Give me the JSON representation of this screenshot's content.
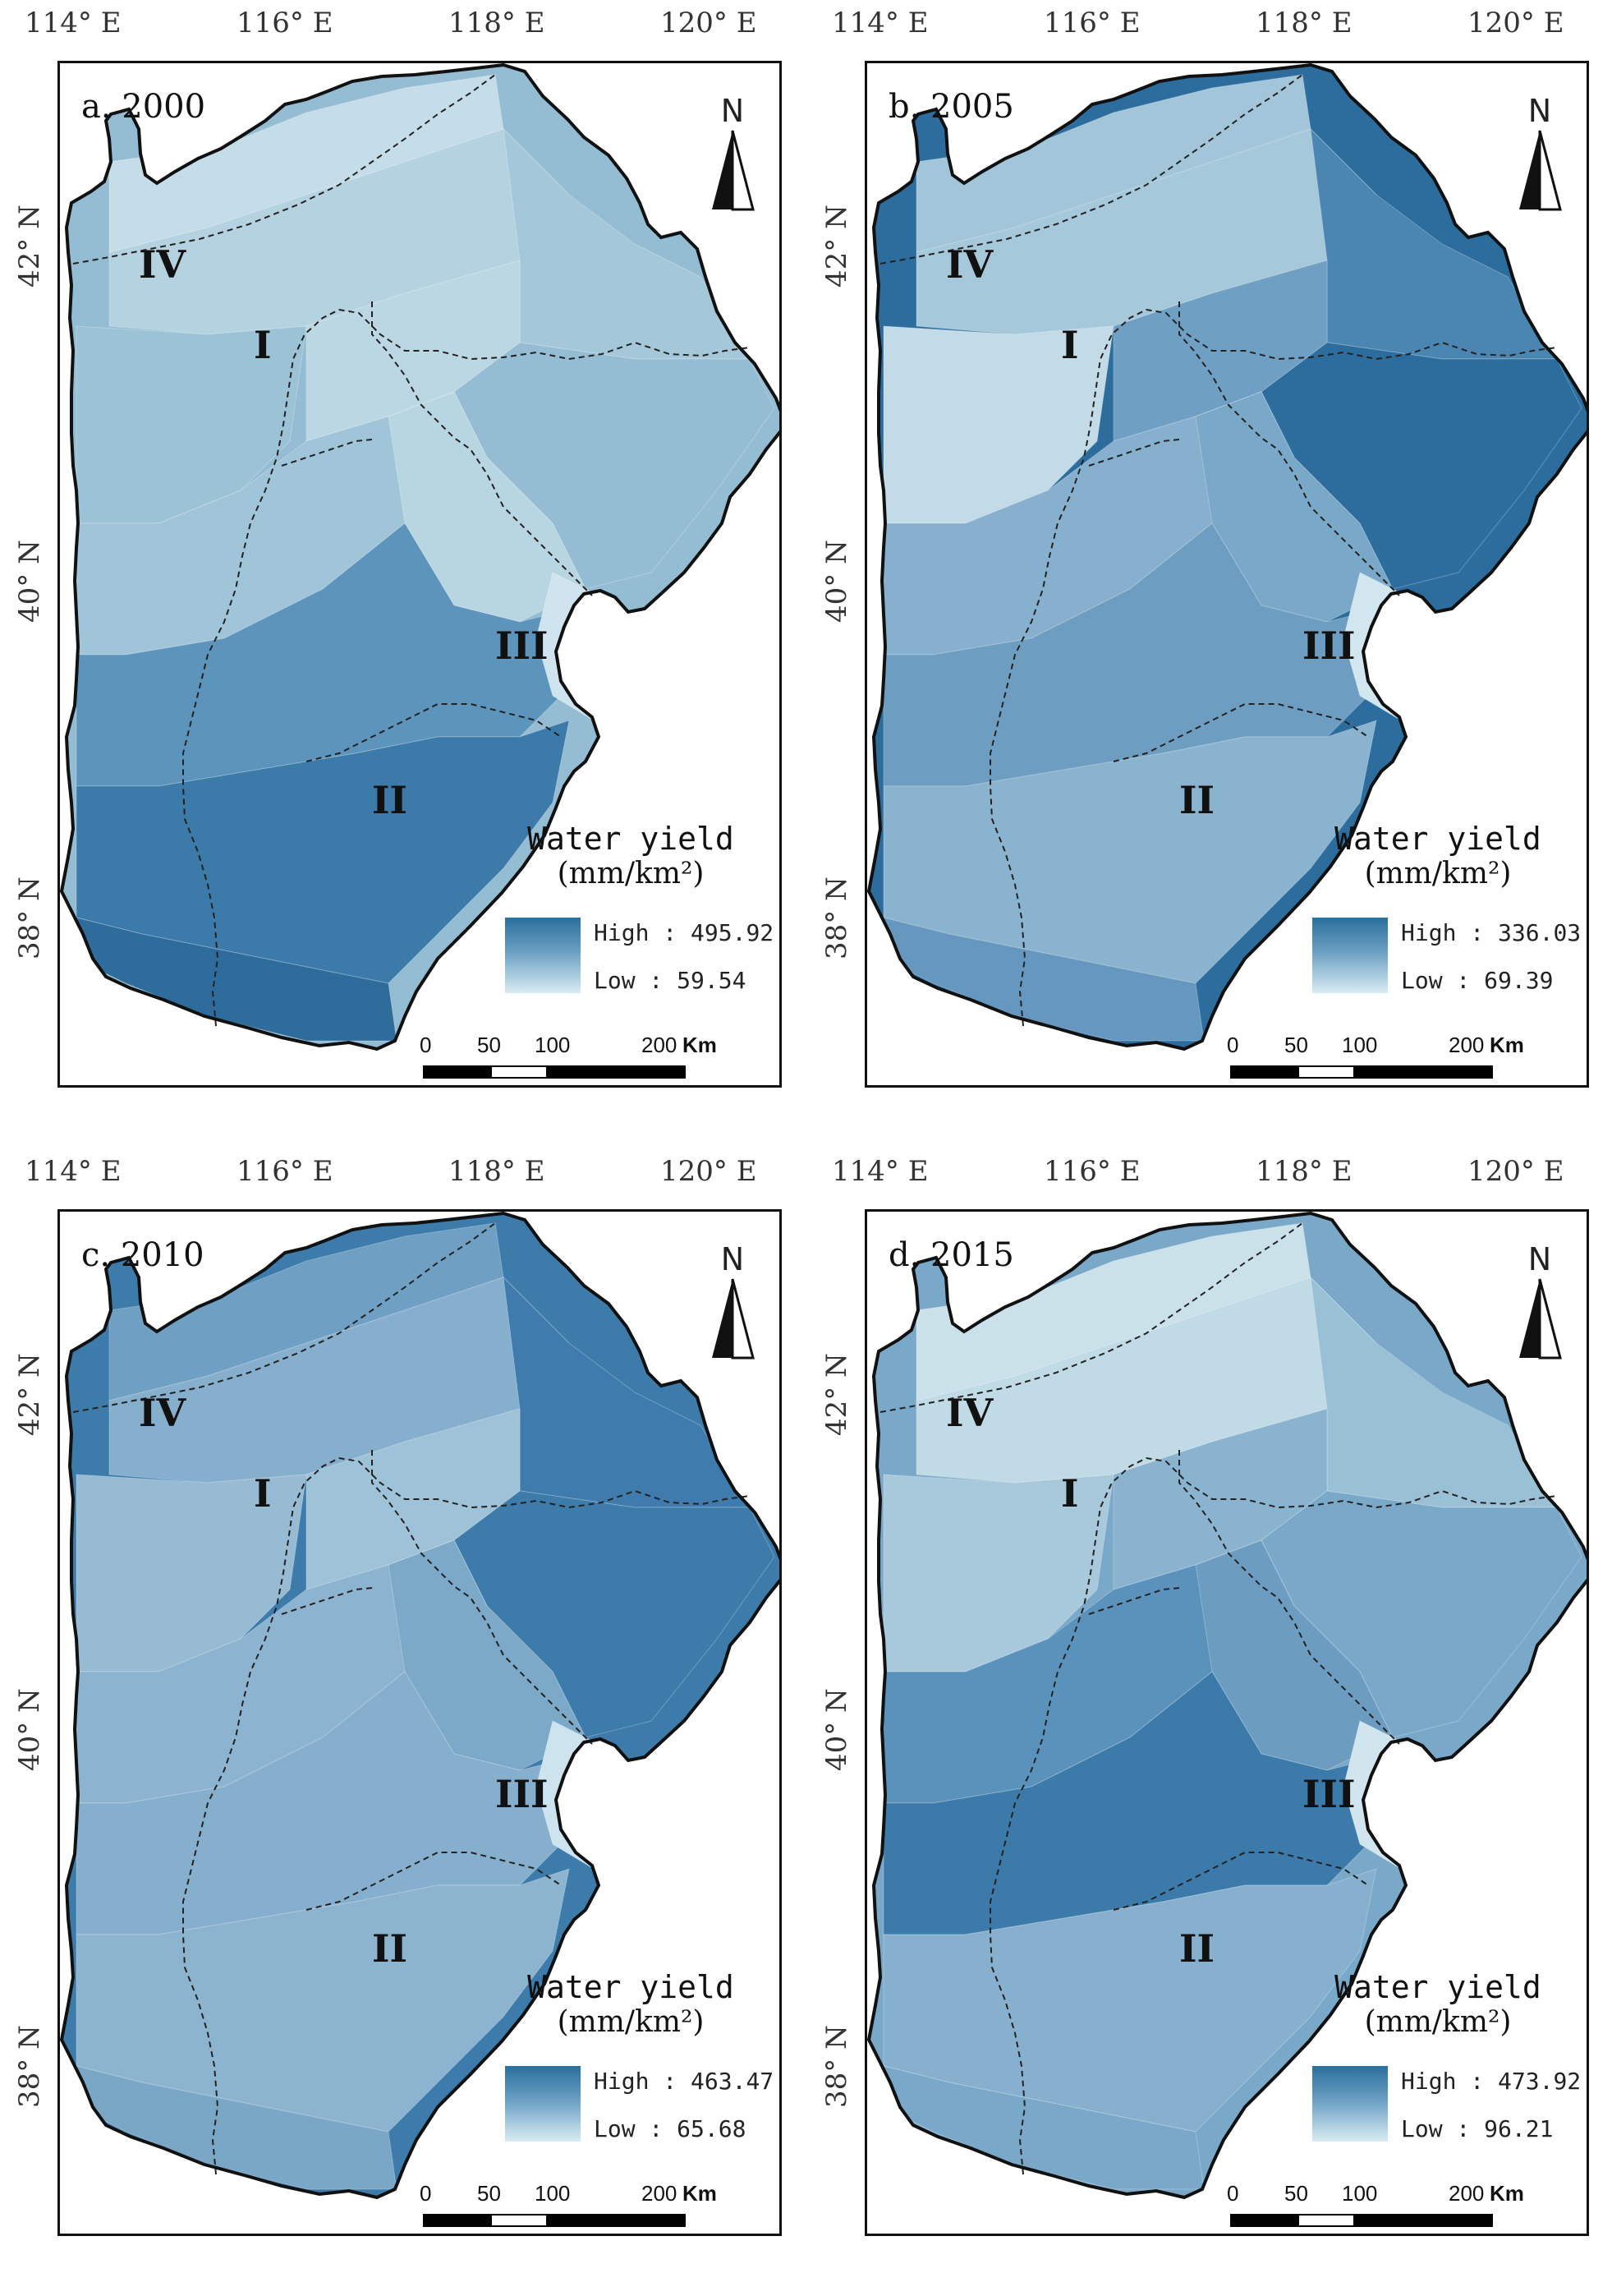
{
  "axes": {
    "longitude_ticks": [
      "114° E",
      "116° E",
      "118° E",
      "120° E"
    ],
    "latitude_ticks": [
      "42° N",
      "40° N",
      "38° N"
    ]
  },
  "north_label": "N",
  "region_labels": [
    "I",
    "II",
    "III",
    "IV"
  ],
  "legend": {
    "title": "Water yield",
    "unit": "(mm/km²)",
    "high_prefix": "High :",
    "low_prefix": "Low :"
  },
  "scale_bar": {
    "ticks": [
      "0",
      "50",
      "100",
      "200"
    ],
    "unit": "Km"
  },
  "colors": {
    "ramp_high": "#2a6f9e",
    "ramp_low": "#d9ecf3",
    "boundary": "#111111"
  },
  "panels": [
    {
      "title": "a. 2000",
      "high": "495.92",
      "low": "59.54"
    },
    {
      "title": "b. 2005",
      "high": "336.03",
      "low": "69.39"
    },
    {
      "title": "c. 2010",
      "high": "463.47",
      "low": "65.68"
    },
    {
      "title": "d. 2015",
      "high": "473.92",
      "low": "96.21"
    }
  ]
}
